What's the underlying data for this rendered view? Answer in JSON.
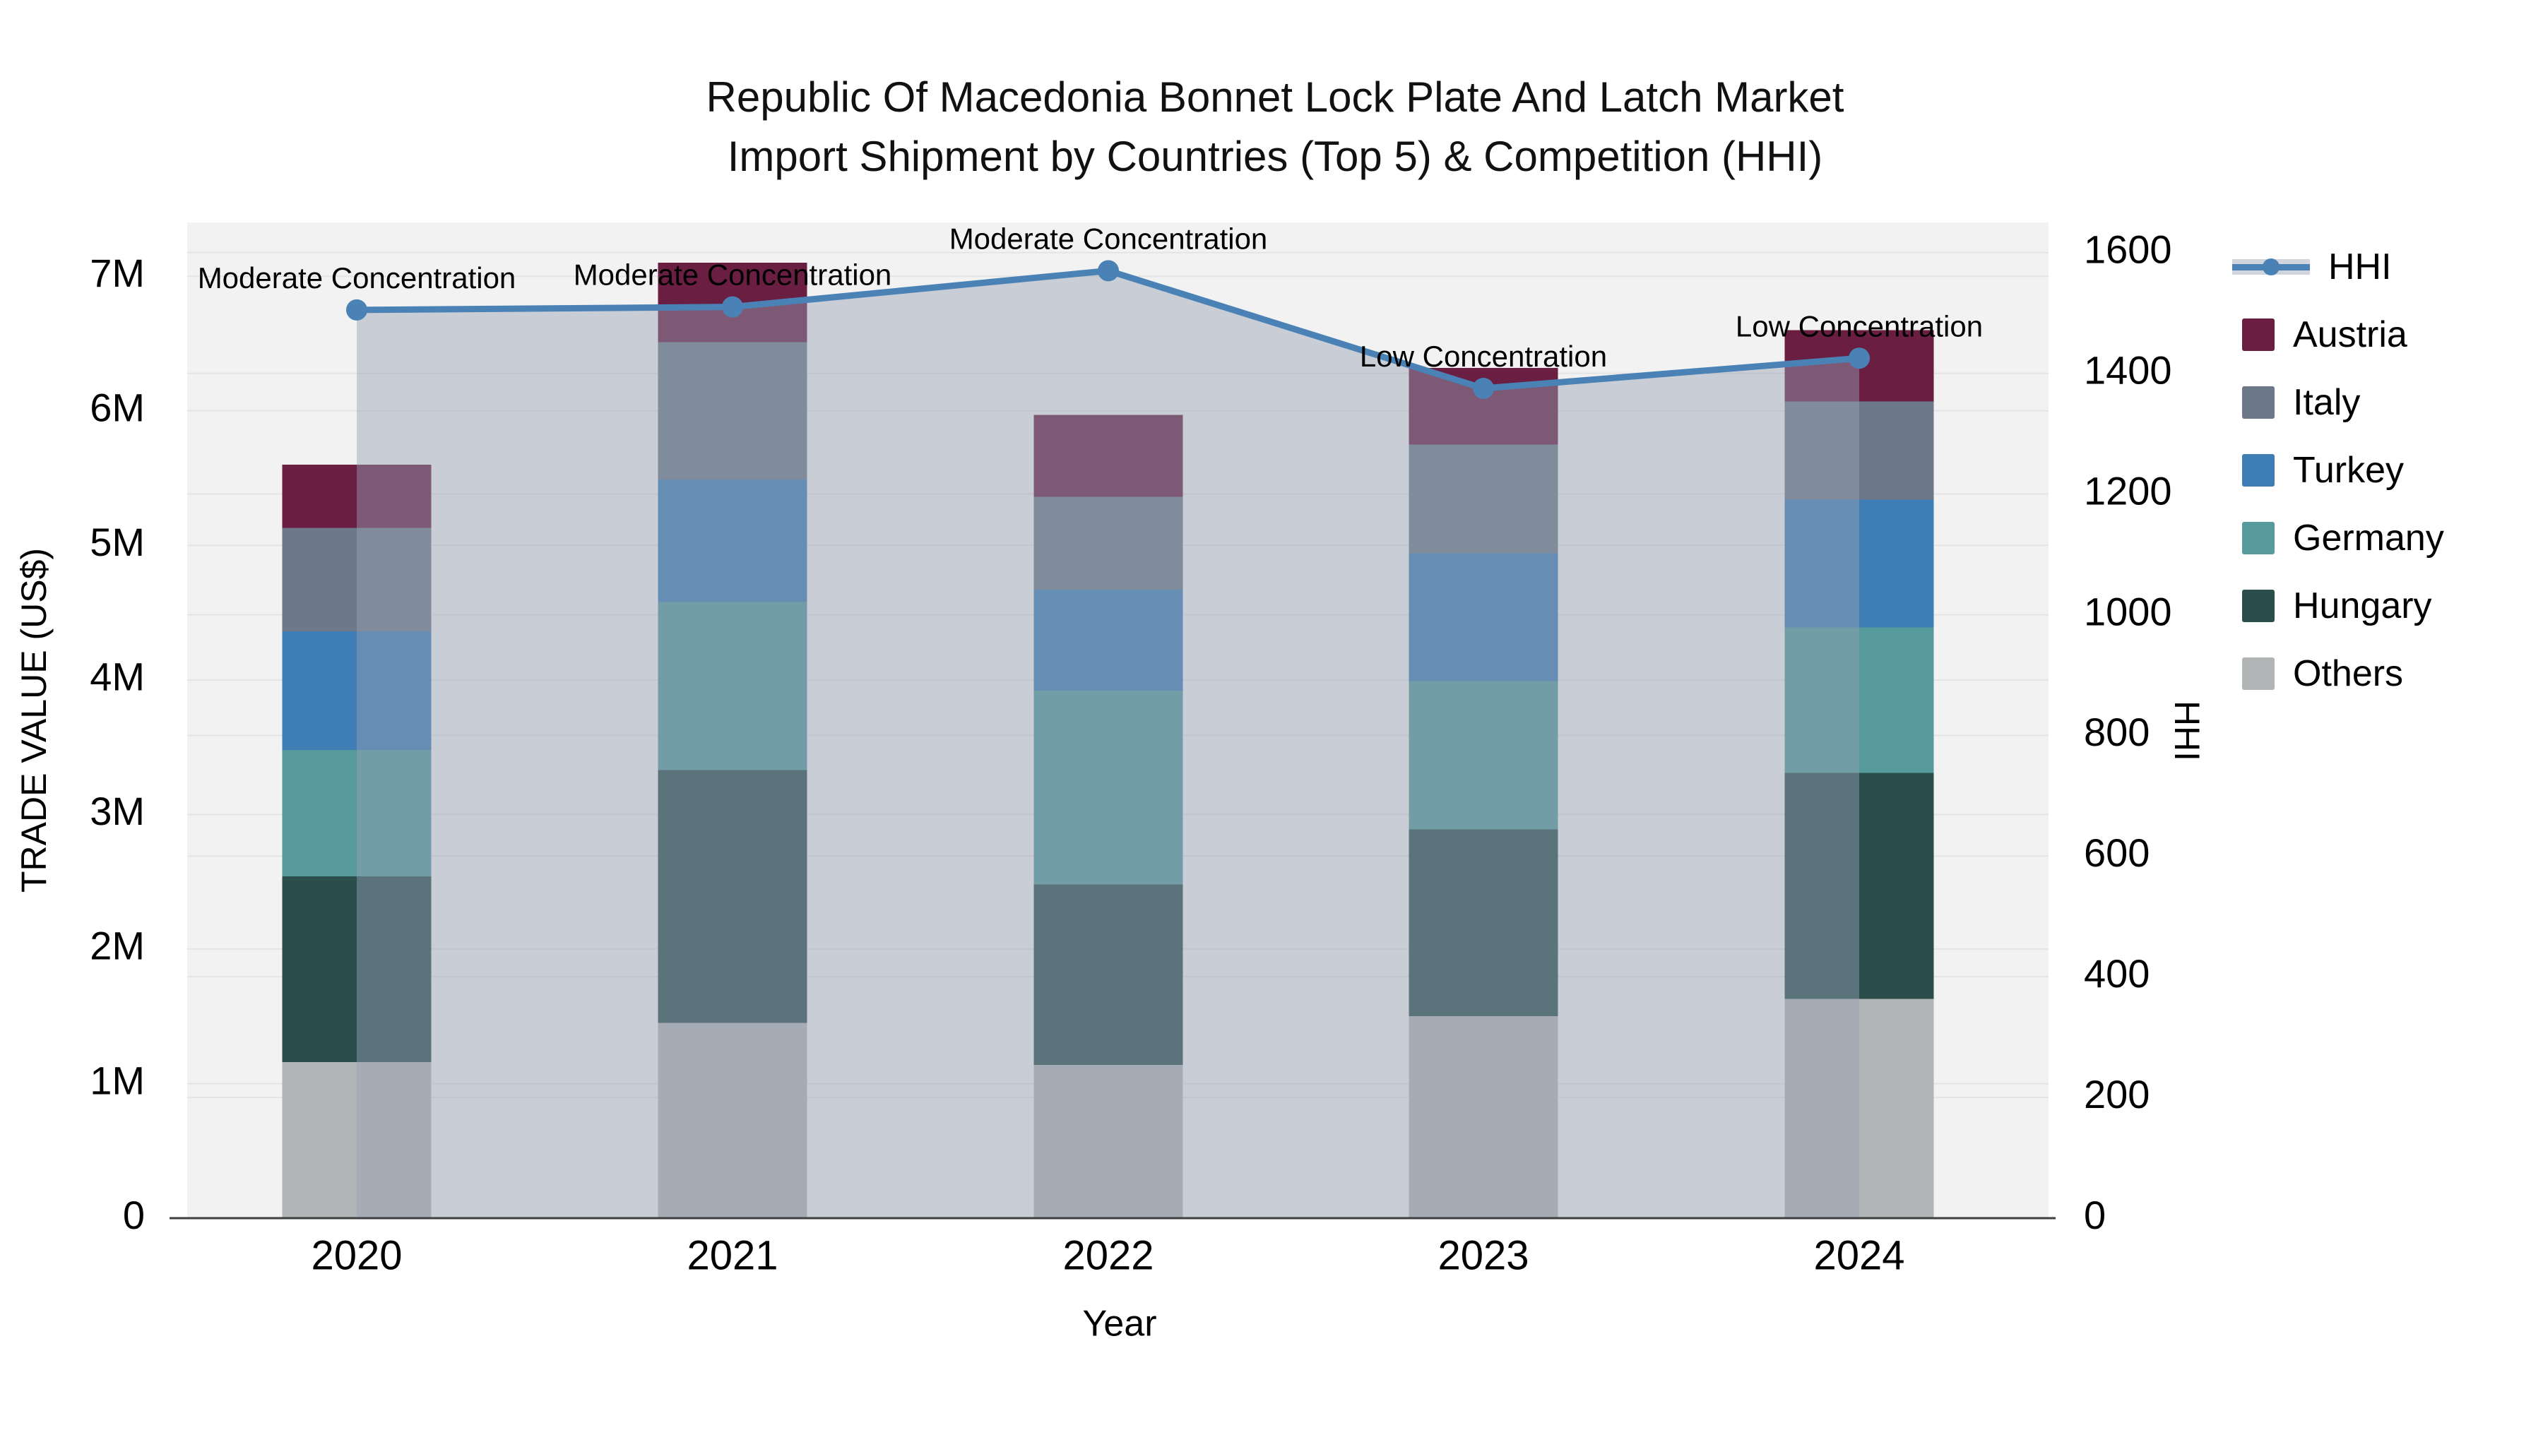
{
  "title": {
    "line1": "Republic Of Macedonia Bonnet Lock Plate And Latch Market",
    "line2": "Import Shipment by Countries (Top 5) & Competition (HHI)"
  },
  "axis_titles": {
    "left": "TRADE VALUE (US$)",
    "bottom": "Year",
    "right": "HHI"
  },
  "legend": {
    "items": [
      {
        "label": "HHI",
        "type": "line",
        "color": "#4a82b6"
      },
      {
        "label": "Austria",
        "type": "swatch",
        "color": "#691e42"
      },
      {
        "label": "Italy",
        "type": "swatch",
        "color": "#6d7888"
      },
      {
        "label": "Turkey",
        "type": "swatch",
        "color": "#3f7eb5"
      },
      {
        "label": "Germany",
        "type": "swatch",
        "color": "#569a9b"
      },
      {
        "label": "Hungary",
        "type": "swatch",
        "color": "#2b4d4c"
      },
      {
        "label": "Others",
        "type": "swatch",
        "color": "#b2b5b6"
      }
    ]
  },
  "colors": {
    "plot_bg": "#f2f2f2",
    "grid": "#e4e4e4",
    "axis_line": "#3f3f3f",
    "hhi_line": "#4a82b6",
    "hhi_fill": "rgba(151,161,180,0.45)",
    "text": "#000000"
  },
  "chart_data": {
    "type": "bar",
    "stacked": true,
    "title": "Republic Of Macedonia Bonnet Lock Plate And Latch Market Import Shipment by Countries (Top 5) & Competition (HHI)",
    "xlabel": "Year",
    "ylabel": "TRADE VALUE (US$)",
    "ylabel_right": "HHI",
    "categories": [
      "2020",
      "2021",
      "2022",
      "2023",
      "2024"
    ],
    "series": [
      {
        "name": "Others",
        "color": "#b2b5b6",
        "values": [
          1160000,
          1450000,
          1140000,
          1500000,
          1630000
        ]
      },
      {
        "name": "Hungary",
        "color": "#2b4d4c",
        "values": [
          1380000,
          1880000,
          1340000,
          1390000,
          1680000
        ]
      },
      {
        "name": "Germany",
        "color": "#569a9b",
        "values": [
          940000,
          1250000,
          1440000,
          1100000,
          1080000
        ]
      },
      {
        "name": "Turkey",
        "color": "#3f7eb5",
        "values": [
          880000,
          910000,
          750000,
          950000,
          950000
        ]
      },
      {
        "name": "Italy",
        "color": "#6d7888",
        "values": [
          770000,
          1020000,
          690000,
          810000,
          730000
        ]
      },
      {
        "name": "Austria",
        "color": "#691e42",
        "values": [
          470000,
          590000,
          610000,
          570000,
          530000
        ]
      }
    ],
    "line": {
      "name": "HHI",
      "axis": "right",
      "color": "#4a82b6",
      "fill": "rgba(151,161,180,0.45)",
      "values": [
        1505,
        1510,
        1570,
        1375,
        1425
      ]
    },
    "annotations": [
      {
        "category": "2020",
        "text": "Moderate Concentration"
      },
      {
        "category": "2021",
        "text": "Moderate Concentration"
      },
      {
        "category": "2022",
        "text": "Moderate Concentration"
      },
      {
        "category": "2023",
        "text": "Low Concentration"
      },
      {
        "category": "2024",
        "text": "Low Concentration"
      }
    ],
    "ylim": [
      0,
      7400000
    ],
    "ylim_right": [
      0,
      1650
    ],
    "yticks": [
      "0",
      "1M",
      "2M",
      "3M",
      "4M",
      "5M",
      "6M",
      "7M"
    ],
    "ytick_values": [
      0,
      1000000,
      2000000,
      3000000,
      4000000,
      5000000,
      6000000,
      7000000
    ],
    "yticks_right": [
      "0",
      "200",
      "400",
      "600",
      "800",
      "1000",
      "1200",
      "1400",
      "1600"
    ],
    "ytick_right_values": [
      0,
      200,
      400,
      600,
      800,
      1000,
      1200,
      1400,
      1600
    ],
    "grid": true,
    "legend_position": "right"
  }
}
